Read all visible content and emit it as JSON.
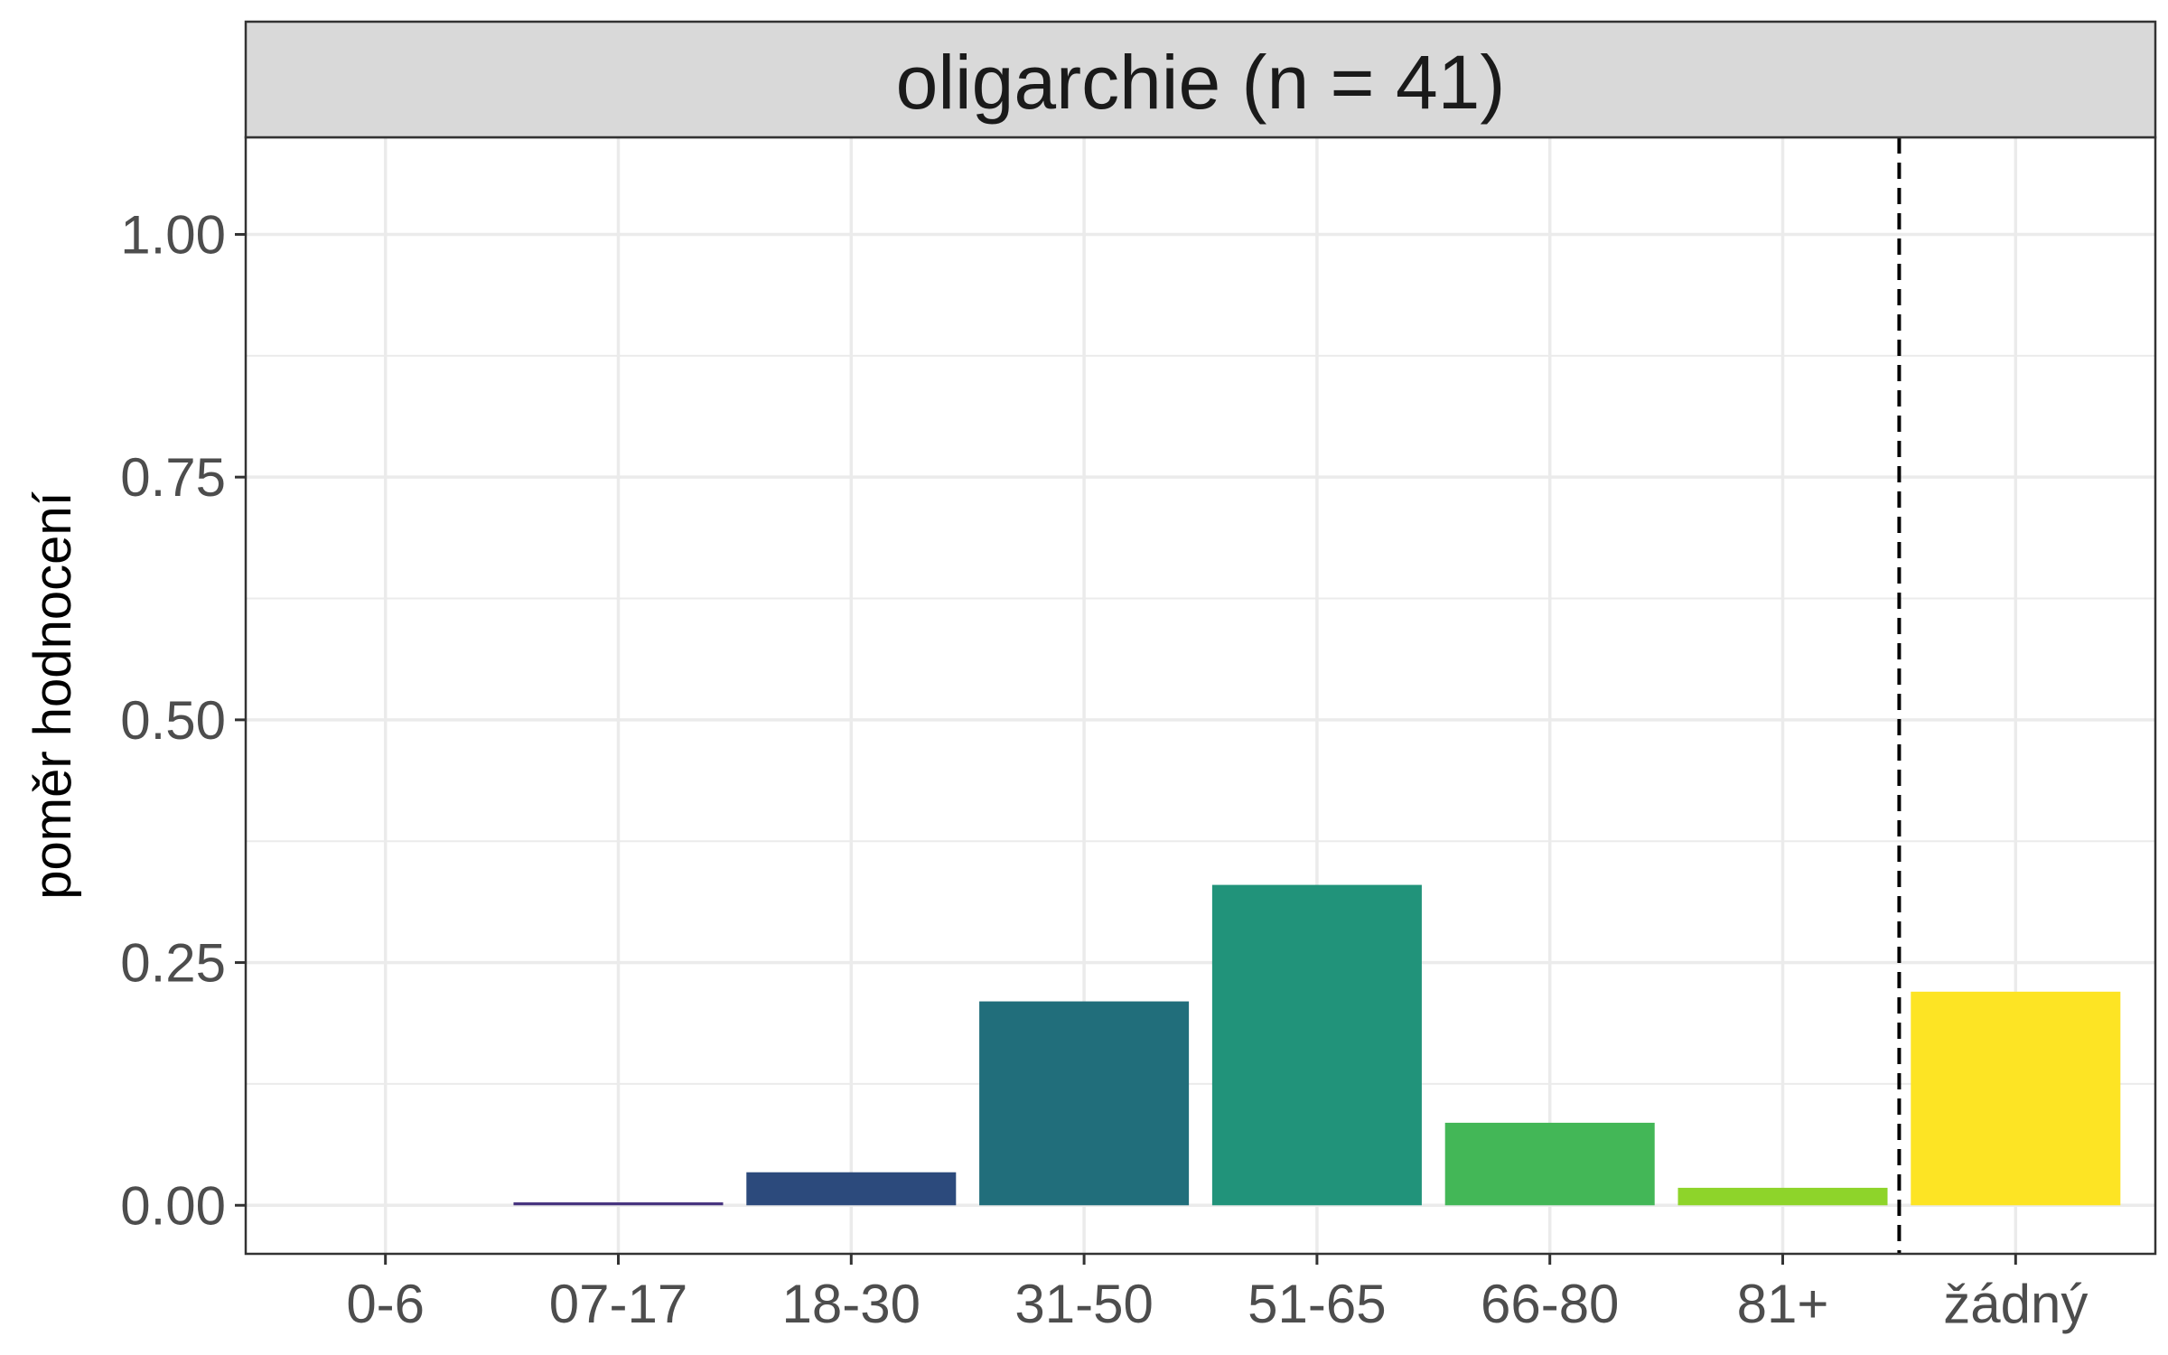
{
  "chart_data": {
    "type": "bar",
    "facet_title": "oligarchie (n = 41)",
    "categories": [
      "0-6",
      "07-17",
      "18-30",
      "31-50",
      "51-65",
      "66-80",
      "81+",
      "žádný"
    ],
    "values": [
      0.0,
      0.003,
      0.034,
      0.21,
      0.33,
      0.085,
      0.018,
      0.22
    ],
    "colors": [
      "#440154",
      "#46337e",
      "#2c4a7c",
      "#216e7b",
      "#21937a",
      "#43b757",
      "#8ed42a",
      "#fde424"
    ],
    "xlabel": "",
    "ylabel": "poměr hodnocení",
    "ylim": [
      -0.05,
      1.1
    ],
    "yticks": [
      0.0,
      0.25,
      0.5,
      0.75,
      1.0
    ],
    "ytick_labels": [
      "0.00",
      "0.25",
      "0.50",
      "0.75",
      "1.00"
    ],
    "separator_after_category": "81+",
    "grid": true,
    "theme_colors": {
      "strip_bg": "#d9d9d9",
      "grid": "#ebebeb",
      "border": "#333333"
    }
  }
}
